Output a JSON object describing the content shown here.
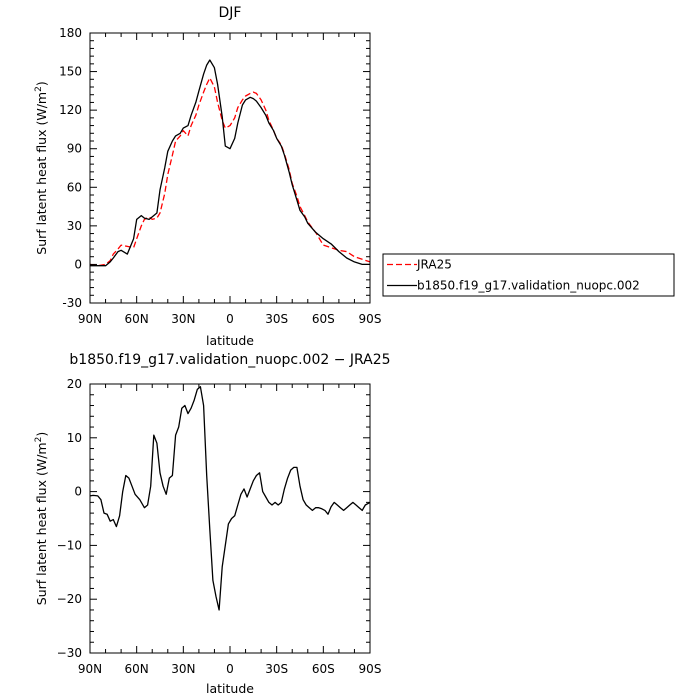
{
  "chart_data": [
    {
      "type": "line",
      "title": "DJF",
      "xlabel": "latitude",
      "ylabel": "Surf latent heat flux (W/m",
      "ylabel_superscript": "2",
      "ylabel_close": ")",
      "x_direction": "north-to-south",
      "xlim": [
        90,
        -90
      ],
      "ylim": [
        -30,
        180
      ],
      "xticks": [
        90,
        60,
        30,
        0,
        -30,
        -60,
        -90
      ],
      "xtick_labels": [
        "90N",
        "60N",
        "30N",
        "0",
        "30S",
        "60S",
        "90S"
      ],
      "yticks": [
        -30,
        0,
        30,
        60,
        90,
        120,
        150,
        180
      ],
      "ytick_labels": [
        "-30",
        "0",
        "30",
        "60",
        "90",
        "120",
        "150",
        "180"
      ],
      "grid": false,
      "legend_position": "right",
      "series": [
        {
          "name": "JRA25",
          "color": "#ff0000",
          "dash": "dashed",
          "x": [
            90,
            85,
            80,
            77,
            75,
            72,
            70,
            66,
            62,
            60,
            57,
            55,
            52,
            50,
            47,
            45,
            42,
            40,
            37,
            35,
            32,
            30,
            27,
            25,
            22,
            20,
            17,
            15,
            13,
            10,
            8,
            5,
            3,
            0,
            -3,
            -5,
            -8,
            -10,
            -13,
            -15,
            -17,
            -20,
            -23,
            -25,
            -28,
            -30,
            -33,
            -35,
            -38,
            -40,
            -43,
            -45,
            -48,
            -50,
            -55,
            -60,
            -65,
            -70,
            -75,
            -80,
            -85,
            -90
          ],
          "y": [
            0,
            -1,
            0,
            3,
            8,
            12,
            15,
            14,
            13,
            20,
            30,
            35,
            37,
            35,
            36,
            40,
            55,
            70,
            85,
            96,
            100,
            104,
            100,
            108,
            116,
            124,
            134,
            140,
            145,
            138,
            126,
            112,
            106,
            108,
            114,
            122,
            128,
            131,
            133,
            134,
            133,
            128,
            120,
            112,
            104,
            98,
            93,
            86,
            74,
            63,
            53,
            45,
            38,
            33,
            25,
            15,
            13,
            11,
            10,
            6,
            4,
            2
          ]
        },
        {
          "name": "b1850.f19_g17.validation_nuopc.002",
          "color": "#000000",
          "dash": "solid",
          "x": [
            90,
            85,
            80,
            77,
            75,
            72,
            70,
            66,
            62,
            60,
            57,
            55,
            52,
            50,
            47,
            45,
            42,
            40,
            37,
            35,
            32,
            30,
            27,
            25,
            22,
            20,
            17,
            15,
            13,
            10,
            8,
            5,
            3,
            0,
            -3,
            -5,
            -8,
            -10,
            -13,
            -15,
            -17,
            -20,
            -23,
            -25,
            -28,
            -30,
            -33,
            -35,
            -38,
            -40,
            -43,
            -45,
            -48,
            -50,
            -55,
            -60,
            -65,
            -70,
            -75,
            -80,
            -85,
            -90
          ],
          "y": [
            -1,
            -1,
            -1,
            2,
            5,
            10,
            11,
            8,
            20,
            35,
            38,
            36,
            35,
            37,
            40,
            58,
            75,
            88,
            96,
            100,
            102,
            106,
            108,
            116,
            126,
            135,
            148,
            155,
            159,
            153,
            140,
            115,
            92,
            90,
            98,
            110,
            124,
            128,
            130,
            129,
            127,
            122,
            116,
            110,
            104,
            98,
            92,
            85,
            72,
            62,
            50,
            42,
            37,
            32,
            25,
            20,
            16,
            10,
            5,
            2,
            0,
            0
          ]
        }
      ]
    },
    {
      "type": "line",
      "title": "b1850.f19_g17.validation_nuopc.002 − JRA25",
      "xlabel": "latitude",
      "ylabel": "Surf latent heat flux (W/m",
      "ylabel_superscript": "2",
      "ylabel_close": ")",
      "x_direction": "north-to-south",
      "xlim": [
        90,
        -90
      ],
      "ylim": [
        -30,
        20
      ],
      "xticks": [
        90,
        60,
        30,
        0,
        -30,
        -60,
        -90
      ],
      "xtick_labels": [
        "90N",
        "60N",
        "30N",
        "0",
        "30S",
        "60S",
        "90S"
      ],
      "yticks": [
        -30,
        -20,
        -10,
        0,
        10,
        20
      ],
      "ytick_labels": [
        "−30",
        "−20",
        "−10",
        "0",
        "10",
        "20"
      ],
      "grid": false,
      "series": [
        {
          "name": "",
          "color": "#000000",
          "dash": "solid",
          "x": [
            90,
            88,
            85,
            83,
            81,
            79,
            77,
            75,
            73,
            71,
            69,
            67,
            65,
            63,
            61,
            58,
            55,
            53,
            51,
            49,
            47,
            45,
            43,
            41,
            39,
            37,
            35,
            33,
            31,
            29,
            27,
            25,
            23,
            21,
            19,
            17,
            15,
            13,
            11,
            9,
            7,
            5,
            3,
            1,
            -1,
            -3,
            -5,
            -7,
            -9,
            -11,
            -13,
            -15,
            -17,
            -19,
            -21,
            -23,
            -25,
            -27,
            -29,
            -31,
            -33,
            -35,
            -37,
            -39,
            -41,
            -43,
            -45,
            -47,
            -49,
            -51,
            -53,
            -55,
            -57,
            -59,
            -61,
            -63,
            -65,
            -67,
            -69,
            -71,
            -73,
            -75,
            -77,
            -79,
            -81,
            -83,
            -85,
            -87,
            -90
          ],
          "y": [
            -0.8,
            -0.7,
            -0.8,
            -1.5,
            -4.0,
            -4.2,
            -5.5,
            -5.2,
            -6.5,
            -4.5,
            0.0,
            3.0,
            2.5,
            1.0,
            -0.5,
            -1.5,
            -3.0,
            -2.5,
            1.0,
            10.5,
            9.0,
            3.5,
            1.0,
            -0.5,
            2.5,
            3.0,
            10.5,
            12.0,
            15.5,
            16.0,
            14.5,
            15.5,
            17.0,
            19.0,
            19.5,
            16.0,
            3.0,
            -7.0,
            -16.5,
            -19.5,
            -22.0,
            -14.0,
            -10.0,
            -6.0,
            -5.0,
            -4.5,
            -2.5,
            -0.5,
            0.5,
            -1.0,
            0.5,
            2.0,
            3.0,
            3.5,
            0.0,
            -1.0,
            -2.0,
            -2.5,
            -2.0,
            -2.5,
            -2.0,
            0.5,
            2.5,
            4.0,
            4.5,
            4.5,
            1.0,
            -1.5,
            -2.5,
            -3.0,
            -3.5,
            -3.0,
            -3.0,
            -3.2,
            -3.5,
            -4.2,
            -2.8,
            -2.0,
            -2.5,
            -3.0,
            -3.5,
            -3.0,
            -2.5,
            -2.0,
            -2.5,
            -3.0,
            -3.5,
            -2.5,
            -2.0
          ]
        }
      ]
    }
  ]
}
